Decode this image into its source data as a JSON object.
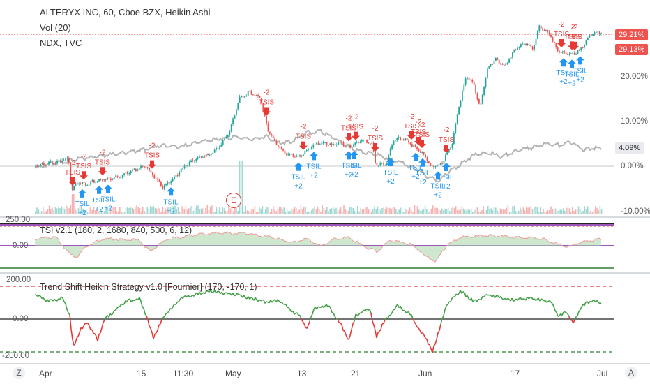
{
  "main": {
    "legend": [
      "ALTERYX INC, 60, Cboe BZX, Heikin Ashi",
      "Vol (20)",
      "NDX, TVC"
    ],
    "axis_labels": [
      "20.00%",
      "10.00%",
      "0.00%",
      "-10.00%"
    ],
    "badges": [
      {
        "text": "29.21%",
        "color": "#ef5350"
      },
      {
        "text": "29.13%",
        "color": "#ef5350"
      },
      {
        "text": "4.09%",
        "color": "#e8eaed",
        "text_color": "#222"
      }
    ],
    "earnings_marker": "E"
  },
  "tsi_pane": {
    "legend": "TSI v2.1 (180, 2, 1680, 840, 500, 6, 12)",
    "axis_labels": [
      "250.00",
      "0.00"
    ]
  },
  "strategy_pane": {
    "legend": "Trend Shift Heikin Strategy v1.0 [Fournier] (170, -170, 1)",
    "axis_labels": [
      "200.00",
      "0.00",
      "-200.00"
    ]
  },
  "time_axis": {
    "labels": [
      "Apr",
      "15",
      "11:30",
      "May",
      "13",
      "21",
      "Jun",
      "17",
      "Jul"
    ],
    "left_corner": "Z",
    "right_corner": "A"
  },
  "signals": {
    "short_label": "TSIS",
    "short_qty": "-2",
    "long_label": "TSIL",
    "long_qty": "+2",
    "short_color": "#e53935",
    "long_color": "#2196f3"
  },
  "colors": {
    "up": "#26a69a",
    "down": "#ef5350",
    "ndx": "#b3b3b3",
    "osc_line": "#43a047"
  }
}
